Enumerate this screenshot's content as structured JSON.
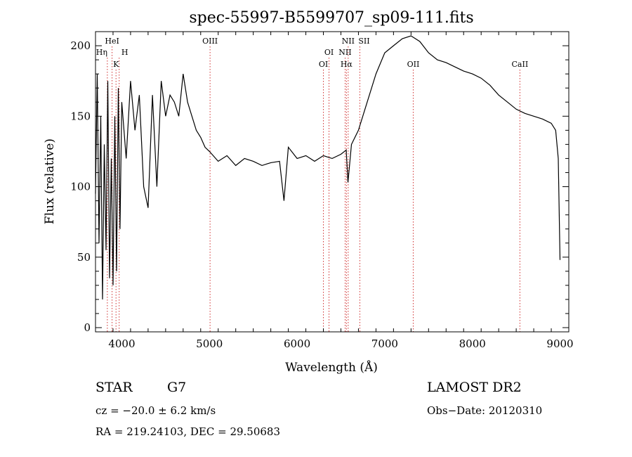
{
  "chart_data": {
    "type": "line",
    "title": "spec-55997-B5599707_sp09-111.fits",
    "xlabel": "Wavelength (Å)",
    "ylabel": "Flux (relative)",
    "xlim": [
      3700,
      9100
    ],
    "ylim": [
      -3,
      210
    ],
    "xticks": [
      4000,
      5000,
      6000,
      7000,
      8000,
      9000
    ],
    "yticks": [
      0,
      50,
      100,
      150,
      200
    ],
    "grid": false,
    "series": [
      {
        "color": "#000000",
        "x": [
          3700,
          3720,
          3740,
          3760,
          3780,
          3800,
          3820,
          3840,
          3860,
          3880,
          3900,
          3920,
          3940,
          3960,
          3980,
          4000,
          4050,
          4100,
          4150,
          4200,
          4250,
          4300,
          4350,
          4400,
          4450,
          4500,
          4550,
          4600,
          4650,
          4700,
          4750,
          4800,
          4850,
          4900,
          4950,
          5000,
          5100,
          5200,
          5300,
          5400,
          5500,
          5600,
          5700,
          5800,
          5850,
          5900,
          6000,
          6100,
          6200,
          6300,
          6400,
          6500,
          6560,
          6580,
          6620,
          6700,
          6800,
          6900,
          7000,
          7100,
          7200,
          7300,
          7400,
          7500,
          7600,
          7700,
          7800,
          7900,
          8000,
          8100,
          8200,
          8300,
          8400,
          8500,
          8600,
          8700,
          8800,
          8900,
          8950,
          8980,
          9000
        ],
        "y": [
          95,
          180,
          60,
          150,
          20,
          130,
          55,
          175,
          35,
          120,
          30,
          150,
          40,
          170,
          70,
          160,
          120,
          175,
          140,
          165,
          100,
          85,
          165,
          100,
          175,
          150,
          165,
          160,
          150,
          180,
          160,
          150,
          140,
          135,
          128,
          125,
          118,
          122,
          115,
          120,
          118,
          115,
          117,
          118,
          90,
          128,
          120,
          122,
          118,
          122,
          120,
          123,
          126,
          103,
          130,
          140,
          160,
          180,
          195,
          200,
          205,
          207,
          203,
          195,
          190,
          188,
          185,
          182,
          180,
          177,
          172,
          165,
          160,
          155,
          152,
          150,
          148,
          145,
          140,
          120,
          48
        ]
      }
    ],
    "lines": [
      {
        "label": "HeI",
        "wavelength": 3889
      },
      {
        "label": "Hη",
        "wavelength": 3835
      },
      {
        "label": "H",
        "wavelength": 3970
      },
      {
        "label": "K",
        "wavelength": 3934
      },
      {
        "label": "OIII",
        "wavelength": 5007
      },
      {
        "label": "OI",
        "wavelength": 6364
      },
      {
        "label": "OI",
        "wavelength": 6300
      },
      {
        "label": "NII",
        "wavelength": 6583
      },
      {
        "label": "NII",
        "wavelength": 6548
      },
      {
        "label": "Hα",
        "wavelength": 6563
      },
      {
        "label": "SII",
        "wavelength": 6716
      },
      {
        "label": "OII",
        "wavelength": 7325
      },
      {
        "label": "CaII",
        "wavelength": 8542
      }
    ]
  },
  "info": {
    "object_class": "STAR",
    "subclass": "G7",
    "survey": "LAMOST DR2",
    "cz": "cz = −20.0 ± 6.2 km/s",
    "obs_date": "Obs−Date: 20120310",
    "coords": "RA = 219.24103, DEC =  29.50683"
  }
}
